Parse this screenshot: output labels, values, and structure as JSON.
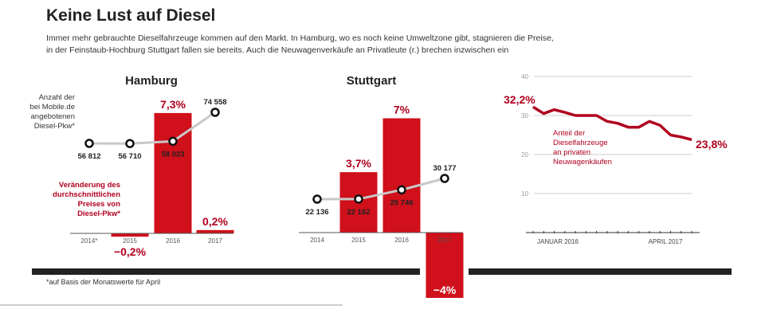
{
  "header": {
    "title": "Keine Lust auf Diesel",
    "subtitle_line1": "Immer mehr gebrauchte Dieselfahrzeuge kommen auf den Markt. In Hamburg, wo es noch keine Umweltzone gibt, stagnieren die Preise,",
    "subtitle_line2": "in der Feinstaub-Hochburg Stuttgart fallen sie bereits. Auch die Neuwagenverkäufe an Privatleute (r.) brechen inzwischen ein"
  },
  "colors": {
    "accent": "#d0101b",
    "line_accent": "#b0001e",
    "count_line": "#c8c8c8",
    "dark": "#222222"
  },
  "footnote": "*auf Basis der Monatswerte für April",
  "chart_data": [
    {
      "type": "bar",
      "title": "Hamburg",
      "categories": [
        "2014*",
        "2015",
        "2016",
        "2017"
      ],
      "values": [
        null,
        -0.2,
        7.3,
        0.2
      ],
      "value_labels": [
        "",
        "−0,2%",
        "7,3%",
        "0,2%"
      ],
      "bar_annotation": "Veränderung des durchschnittlichen Preises von Diesel-Pkw*",
      "line_series": {
        "name": "Anzahl der bei Mobile.de angebotenen Diesel-Pkw*",
        "values": [
          56812,
          56710,
          58023,
          74558
        ],
        "labels": [
          "56 812",
          "56 710",
          "58 023",
          "74 558"
        ]
      }
    },
    {
      "type": "bar",
      "title": "Stuttgart",
      "categories": [
        "2014",
        "2015",
        "2016",
        "2017"
      ],
      "values": [
        null,
        3.7,
        7,
        -4
      ],
      "value_labels": [
        "",
        "3,7%",
        "7%",
        "−4%"
      ],
      "line_series": {
        "values": [
          22136,
          22162,
          25746,
          30177
        ],
        "labels": [
          "22 136",
          "22 162",
          "25 746",
          "30 177"
        ]
      }
    },
    {
      "type": "line",
      "series": [
        {
          "name": "Anteil der Dieselfahrzeuge an privaten Neuwagenkäufen",
          "values": [
            32.2,
            30.5,
            31.5,
            30.8,
            30.0,
            30.0,
            30.0,
            28.5,
            28.0,
            27.0,
            27.0,
            28.5,
            27.5,
            25.0,
            24.5,
            23.8
          ]
        }
      ],
      "x_labels": [
        "JANUAR 2016",
        "APRIL 2017"
      ],
      "yticks": [
        10,
        20,
        30,
        40
      ],
      "ylim": [
        0,
        40
      ],
      "grid": true,
      "start_label": "32,2%",
      "end_label": "23,8%"
    }
  ]
}
